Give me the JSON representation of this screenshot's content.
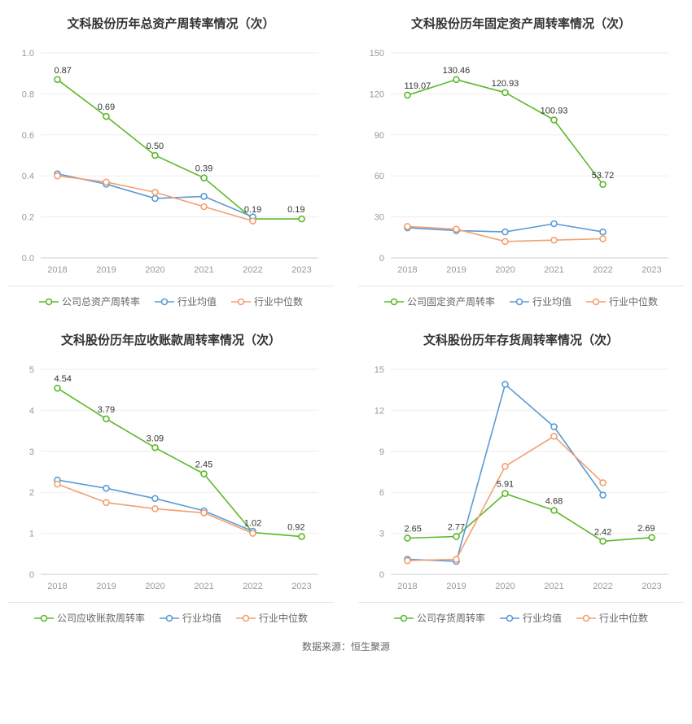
{
  "footer": "数据来源：恒生聚源",
  "global_style": {
    "background_color": "#ffffff",
    "axis_line_color": "#cccccc",
    "grid_color": "#eeeeee",
    "axis_label_color": "#999999",
    "title_color": "#333333",
    "title_fontsize": 15,
    "axis_fontsize": 11,
    "point_label_fontsize": 11,
    "point_label_color": "#333333",
    "marker_radius": 3.5,
    "line_width": 1.6,
    "legend_fontsize": 12,
    "legend_color": "#666666",
    "legend_divider_color": "#e6e6e6"
  },
  "panels": [
    {
      "id": "total-asset-turnover",
      "title": "文科股份历年总资产周转率情况（次）",
      "type": "line",
      "categories": [
        "2018",
        "2019",
        "2020",
        "2021",
        "2022",
        "2023"
      ],
      "ylim": [
        0,
        1
      ],
      "ytick_step": 0.2,
      "y_decimals": 1,
      "series": [
        {
          "name": "公司总资产周转率",
          "color": "#5cb82a",
          "values": [
            0.87,
            0.69,
            0.5,
            0.39,
            0.19,
            0.19
          ],
          "show_labels": true,
          "label_decimals": 2
        },
        {
          "name": "行业均值",
          "color": "#5b9bd5",
          "values": [
            0.41,
            0.36,
            0.29,
            0.3,
            0.2,
            null
          ],
          "show_labels": false
        },
        {
          "name": "行业中位数",
          "color": "#f4a071",
          "values": [
            0.4,
            0.37,
            0.32,
            0.25,
            0.18,
            null
          ],
          "show_labels": false
        }
      ]
    },
    {
      "id": "fixed-asset-turnover",
      "title": "文科股份历年固定资产周转率情况（次）",
      "type": "line",
      "categories": [
        "2018",
        "2019",
        "2020",
        "2021",
        "2022",
        "2023"
      ],
      "ylim": [
        0,
        150
      ],
      "ytick_step": 30,
      "y_decimals": 0,
      "series": [
        {
          "name": "公司固定资产周转率",
          "color": "#5cb82a",
          "values": [
            119.07,
            130.46,
            120.93,
            100.93,
            53.72,
            null
          ],
          "show_labels": true,
          "label_decimals": 2
        },
        {
          "name": "行业均值",
          "color": "#5b9bd5",
          "values": [
            22,
            20,
            19,
            25,
            19,
            null
          ],
          "show_labels": false
        },
        {
          "name": "行业中位数",
          "color": "#f4a071",
          "values": [
            23,
            21,
            12,
            13,
            14,
            null
          ],
          "show_labels": false
        }
      ]
    },
    {
      "id": "receivables-turnover",
      "title": "文科股份历年应收账款周转率情况（次）",
      "type": "line",
      "categories": [
        "2018",
        "2019",
        "2020",
        "2021",
        "2022",
        "2023"
      ],
      "ylim": [
        0,
        5
      ],
      "ytick_step": 1,
      "y_decimals": 0,
      "series": [
        {
          "name": "公司应收账款周转率",
          "color": "#5cb82a",
          "values": [
            4.54,
            3.79,
            3.09,
            2.45,
            1.02,
            0.92
          ],
          "show_labels": true,
          "label_decimals": 2
        },
        {
          "name": "行业均值",
          "color": "#5b9bd5",
          "values": [
            2.3,
            2.1,
            1.85,
            1.55,
            1.05,
            null
          ],
          "show_labels": false
        },
        {
          "name": "行业中位数",
          "color": "#f4a071",
          "values": [
            2.2,
            1.75,
            1.6,
            1.5,
            1.0,
            null
          ],
          "show_labels": false
        }
      ]
    },
    {
      "id": "inventory-turnover",
      "title": "文科股份历年存货周转率情况（次）",
      "type": "line",
      "categories": [
        "2018",
        "2019",
        "2020",
        "2021",
        "2022",
        "2023"
      ],
      "ylim": [
        0,
        15
      ],
      "ytick_step": 3,
      "y_decimals": 0,
      "series": [
        {
          "name": "公司存货周转率",
          "color": "#5cb82a",
          "values": [
            2.65,
            2.77,
            5.91,
            4.68,
            2.42,
            2.69
          ],
          "show_labels": true,
          "label_decimals": 2
        },
        {
          "name": "行业均值",
          "color": "#5b9bd5",
          "values": [
            1.1,
            0.95,
            13.9,
            10.8,
            5.8,
            null
          ],
          "show_labels": false
        },
        {
          "name": "行业中位数",
          "color": "#f4a071",
          "values": [
            1.0,
            1.1,
            7.9,
            10.1,
            6.7,
            null
          ],
          "show_labels": false
        }
      ]
    }
  ]
}
